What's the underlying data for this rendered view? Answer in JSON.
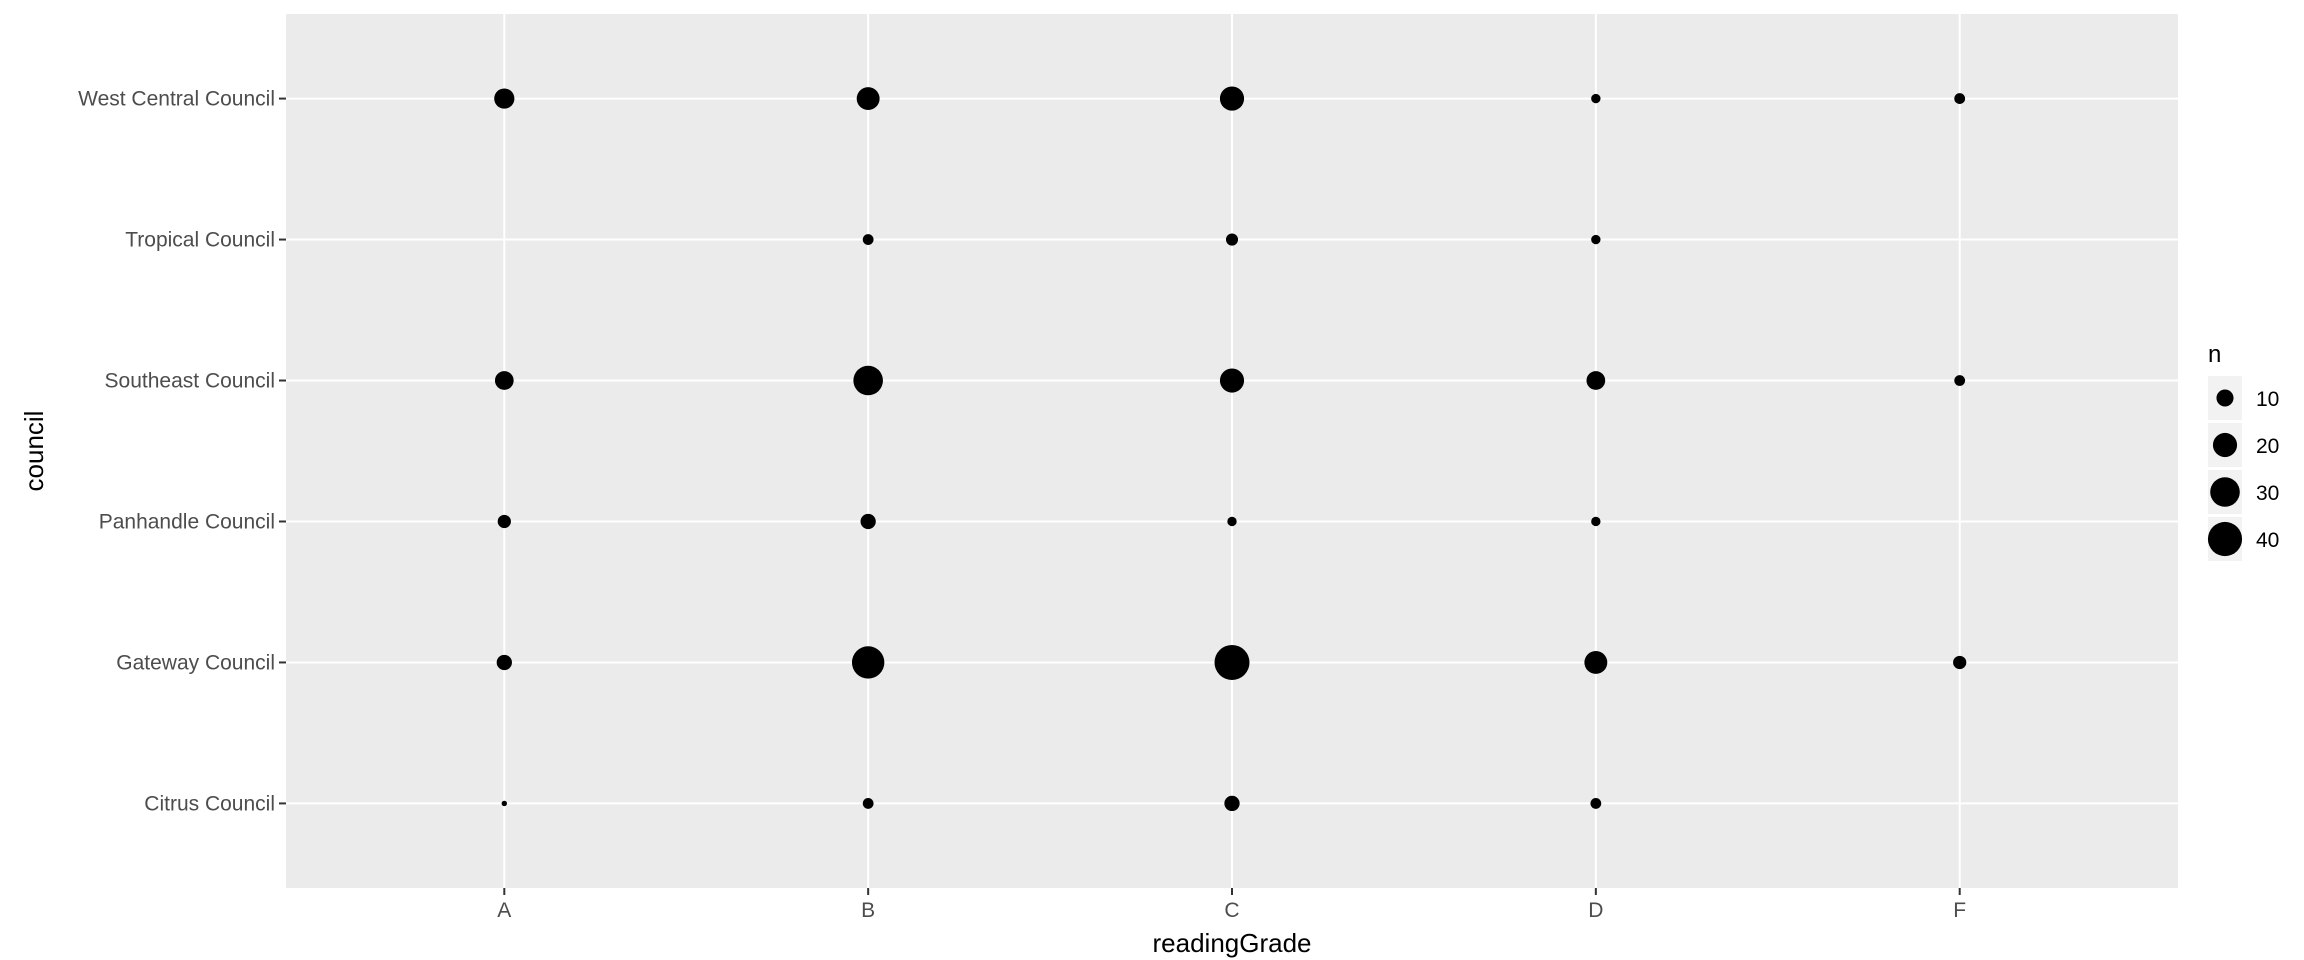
{
  "chart_data": {
    "type": "scatter",
    "xlabel": "readingGrade",
    "ylabel": "council",
    "categories_x": [
      "A",
      "B",
      "C",
      "D",
      "F"
    ],
    "categories_y": [
      "Citrus Council",
      "Gateway Council",
      "Panhandle Council",
      "Southeast Council",
      "Tropical Council",
      "West Central Council"
    ],
    "size_variable": "n",
    "points": [
      {
        "x": "A",
        "y": "West Central Council",
        "n": 14
      },
      {
        "x": "B",
        "y": "West Central Council",
        "n": 18
      },
      {
        "x": "C",
        "y": "West Central Council",
        "n": 20
      },
      {
        "x": "D",
        "y": "West Central Council",
        "n": 3
      },
      {
        "x": "F",
        "y": "West Central Council",
        "n": 4
      },
      {
        "x": "B",
        "y": "Tropical Council",
        "n": 4
      },
      {
        "x": "C",
        "y": "Tropical Council",
        "n": 5
      },
      {
        "x": "D",
        "y": "Tropical Council",
        "n": 3
      },
      {
        "x": "A",
        "y": "Southeast Council",
        "n": 12
      },
      {
        "x": "B",
        "y": "Southeast Council",
        "n": 30
      },
      {
        "x": "C",
        "y": "Southeast Council",
        "n": 20
      },
      {
        "x": "D",
        "y": "Southeast Council",
        "n": 12
      },
      {
        "x": "F",
        "y": "Southeast Council",
        "n": 4
      },
      {
        "x": "A",
        "y": "Panhandle Council",
        "n": 6
      },
      {
        "x": "B",
        "y": "Panhandle Council",
        "n": 8
      },
      {
        "x": "C",
        "y": "Panhandle Council",
        "n": 3
      },
      {
        "x": "D",
        "y": "Panhandle Council",
        "n": 3
      },
      {
        "x": "A",
        "y": "Gateway Council",
        "n": 8
      },
      {
        "x": "B",
        "y": "Gateway Council",
        "n": 36
      },
      {
        "x": "C",
        "y": "Gateway Council",
        "n": 42
      },
      {
        "x": "D",
        "y": "Gateway Council",
        "n": 18
      },
      {
        "x": "F",
        "y": "Gateway Council",
        "n": 6
      },
      {
        "x": "A",
        "y": "Citrus Council",
        "n": 1
      },
      {
        "x": "B",
        "y": "Citrus Council",
        "n": 4
      },
      {
        "x": "C",
        "y": "Citrus Council",
        "n": 8
      },
      {
        "x": "D",
        "y": "Citrus Council",
        "n": 4
      }
    ],
    "legend": {
      "title": "n",
      "entries": [
        10,
        20,
        30,
        40
      ],
      "position": "right"
    },
    "grid": true,
    "colors": {
      "panel_background": "#ebebeb",
      "grid_line": "#ffffff",
      "point": "#000000"
    }
  }
}
